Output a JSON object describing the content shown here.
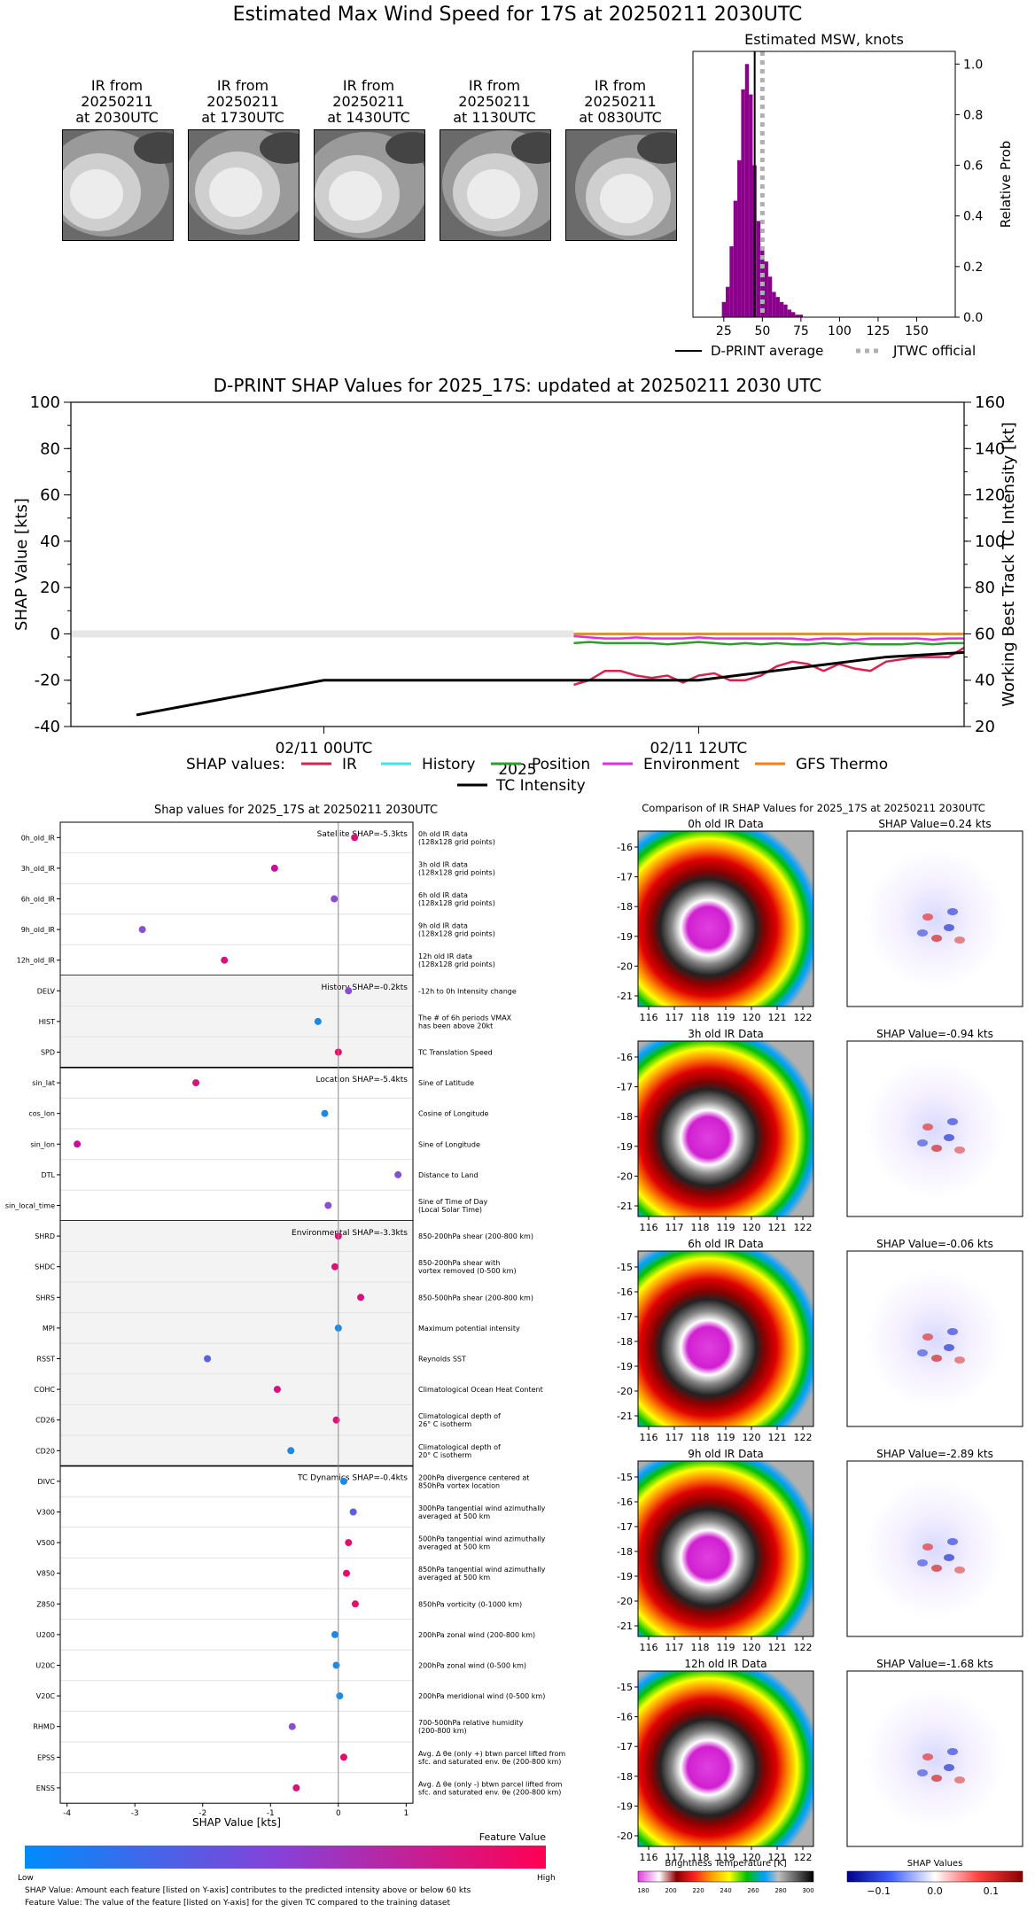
{
  "header": {
    "title": "Estimated Max Wind Speed for 17S at 20250211 2030UTC"
  },
  "thumbnails": [
    {
      "l1": "IR from",
      "l2": "20250211",
      "l3": "at 2030UTC"
    },
    {
      "l1": "IR from",
      "l2": "20250211",
      "l3": "at 1730UTC"
    },
    {
      "l1": "IR from",
      "l2": "20250211",
      "l3": "at 1430UTC"
    },
    {
      "l1": "IR from",
      "l2": "20250211",
      "l3": "at 1130UTC"
    },
    {
      "l1": "IR from",
      "l2": "20250211",
      "l3": "at 0830UTC"
    }
  ],
  "chart_data": [
    {
      "type": "bar",
      "title": "Estimated MSW, knots",
      "ylabel": "Relative Prob",
      "xlim": [
        5,
        175
      ],
      "ylim": [
        0,
        1.05
      ],
      "xticks": [
        "25",
        "50",
        "75",
        "100",
        "125",
        "150"
      ],
      "yticks": [
        "0.0",
        "0.2",
        "0.4",
        "0.6",
        "0.8",
        "1.0"
      ],
      "bins_start": 25,
      "bin_width": 2.5,
      "values": [
        0.06,
        0.12,
        0.28,
        0.46,
        0.62,
        0.9,
        1.0,
        0.88,
        0.6,
        0.38,
        0.28,
        0.22,
        0.16,
        0.1,
        0.08,
        0.06,
        0.05,
        0.03,
        0.02,
        0.01,
        0.01
      ],
      "dprint_average": 45,
      "jtwc_official": 50,
      "legend": [
        "D-PRINT average",
        "JTWC official"
      ]
    },
    {
      "type": "line",
      "title": "D-PRINT SHAP Values for 2025_17S: updated at 20250211 2030 UTC",
      "ylabel": "SHAP Value [kts]",
      "y2label": "Working Best Track TC Intensity [kt]",
      "xlabel": "2025",
      "ylim": [
        -40,
        100
      ],
      "y2lim": [
        20,
        160
      ],
      "yticks": [
        "-40",
        "-20",
        "0",
        "20",
        "40",
        "60",
        "80",
        "100"
      ],
      "y2ticks": [
        "20",
        "40",
        "60",
        "80",
        "100",
        "120",
        "140",
        "160"
      ],
      "xticks": [
        "02/11 00UTC",
        "02/11 12UTC"
      ],
      "legend_prefix": "SHAP values:",
      "legend": [
        "IR",
        "History",
        "Position",
        "Environment",
        "GFS Thermo",
        "TC Intensity"
      ],
      "shap_x_hours": [
        8,
        8.5,
        9,
        9.5,
        10,
        10.5,
        11,
        11.5,
        12,
        12.5,
        13,
        13.5,
        14,
        14.5,
        15,
        15.5,
        16,
        16.5,
        17,
        17.5,
        18,
        18.5,
        19,
        19.5,
        20,
        20.5
      ],
      "series": [
        {
          "name": "IR",
          "color": "#d6244f",
          "values": [
            -22,
            -20,
            -16,
            -16,
            -18,
            -19,
            -18,
            -21,
            -18,
            -17,
            -20,
            -20,
            -18,
            -14,
            -12,
            -13,
            -16,
            -13,
            -15,
            -16,
            -12,
            -11,
            -10,
            -10,
            -10,
            -6
          ]
        },
        {
          "name": "History",
          "color": "#3ee6e6",
          "values": [
            -0.2,
            -0.2,
            -0.2,
            -0.2,
            -0.2,
            -0.2,
            -0.2,
            -0.2,
            -0.2,
            -0.2,
            -0.2,
            -0.2,
            -0.2,
            -0.2,
            -0.2,
            -0.2,
            -0.2,
            -0.2,
            -0.2,
            -0.2,
            -0.2,
            -0.2,
            -0.2,
            -0.2,
            -0.2,
            -0.2
          ]
        },
        {
          "name": "Position",
          "color": "#2ca02c",
          "values": [
            -4,
            -3.5,
            -4,
            -4,
            -4,
            -4,
            -4.5,
            -4,
            -3.5,
            -4,
            -4.5,
            -4,
            -4.5,
            -4,
            -4.5,
            -4.5,
            -4,
            -4.5,
            -4,
            -4.5,
            -4.5,
            -4.5,
            -4,
            -4.5,
            -4,
            -4
          ]
        },
        {
          "name": "Environment",
          "color": "#e030e0",
          "values": [
            -1,
            -1.5,
            -2,
            -2,
            -1.5,
            -2,
            -2,
            -2,
            -1.5,
            -2,
            -2,
            -2,
            -2,
            -2,
            -2,
            -2.5,
            -2,
            -2,
            -2.5,
            -2,
            -2,
            -2,
            -2,
            -2.5,
            -2,
            -2
          ]
        },
        {
          "name": "GFS Thermo",
          "color": "#ff7f0e",
          "values": [
            0,
            0,
            0,
            0,
            0,
            0,
            0,
            0,
            0,
            0,
            0,
            0,
            0,
            0,
            0,
            0,
            0,
            0,
            0,
            0,
            0,
            0,
            0,
            0,
            0,
            0
          ]
        }
      ],
      "intensity": {
        "x_hours": [
          -6,
          0,
          12,
          15,
          18,
          20.5
        ],
        "values": [
          25,
          40,
          40,
          45,
          50,
          52
        ]
      }
    }
  ],
  "shap_panel": {
    "title": "Shap values for 2025_17S at 20250211 2030UTC",
    "xlabel": "SHAP Value [kts]",
    "xticks": [
      "-4",
      "-3",
      "-2",
      "-1",
      "0",
      "1"
    ],
    "xlim": [
      -4.1,
      1.1
    ],
    "groups": [
      {
        "label": "Satellite SHAP=-5.3kts",
        "shaded": false,
        "rows": [
          {
            "name": "0h_old_IR",
            "desc": "0h old IR data\n(128x128 grid points)",
            "shap": 0.24,
            "color": "#d6137a"
          },
          {
            "name": "3h_old_IR",
            "desc": "3h old IR data\n(128x128 grid points)",
            "shap": -0.94,
            "color": "#c8109a"
          },
          {
            "name": "6h_old_IR",
            "desc": "6h old IR data\n(128x128 grid points)",
            "shap": -0.06,
            "color": "#8a4fd0"
          },
          {
            "name": "9h_old_IR",
            "desc": "9h old IR data\n(128x128 grid points)",
            "shap": -2.89,
            "color": "#8a4fd0"
          },
          {
            "name": "12h_old_IR",
            "desc": "12h old IR data\n(128x128 grid points)",
            "shap": -1.68,
            "color": "#d6137a"
          }
        ]
      },
      {
        "label": "History SHAP=-0.2kts",
        "shaded": true,
        "rows": [
          {
            "name": "DELV",
            "desc": "-12h to 0h Intensity change",
            "shap": 0.15,
            "color": "#8a4fd0"
          },
          {
            "name": "HIST",
            "desc": "The # of 6h periods VMAX\nhas been above 20kt",
            "shap": -0.3,
            "color": "#1e88e5"
          },
          {
            "name": "SPD",
            "desc": "TC Translation Speed",
            "shap": 0.0,
            "color": "#e0106a"
          }
        ]
      },
      {
        "label": "Location SHAP=-5.4kts",
        "shaded": false,
        "rows": [
          {
            "name": "sin_lat",
            "desc": "Sine of Latitude",
            "shap": -2.1,
            "color": "#d6137a"
          },
          {
            "name": "cos_lon",
            "desc": "Cosine of Longitude",
            "shap": -0.2,
            "color": "#1e88e5"
          },
          {
            "name": "sin_lon",
            "desc": "Sine of Longitude",
            "shap": -3.85,
            "color": "#c8109a"
          },
          {
            "name": "DTL",
            "desc": "Distance to Land",
            "shap": 0.88,
            "color": "#7a55d6"
          },
          {
            "name": "sin_local_time",
            "desc": "Sine of Time of Day\n(Local Solar Time)",
            "shap": -0.15,
            "color": "#8a4fd0"
          }
        ]
      },
      {
        "label": "Environmental SHAP=-3.3kts",
        "shaded": true,
        "rows": [
          {
            "name": "SHRD",
            "desc": "850-200hPa shear (200-800 km)",
            "shap": 0.0,
            "color": "#d6137a"
          },
          {
            "name": "SHDC",
            "desc": "850-200hPa shear with\nvortex removed (0-500 km)",
            "shap": -0.05,
            "color": "#d6137a"
          },
          {
            "name": "SHRS",
            "desc": "850-500hPa shear (200-800 km)",
            "shap": 0.33,
            "color": "#d6137a"
          },
          {
            "name": "MPI",
            "desc": "Maximum potential intensity",
            "shap": 0.0,
            "color": "#1e88e5"
          },
          {
            "name": "RSST",
            "desc": "Reynolds SST",
            "shap": -1.93,
            "color": "#5a60e0"
          },
          {
            "name": "COHC",
            "desc": "Climatological Ocean Heat Content",
            "shap": -0.9,
            "color": "#d6137a"
          },
          {
            "name": "CD26",
            "desc": "Climatological depth of\n26° C isotherm",
            "shap": -0.03,
            "color": "#d6137a"
          },
          {
            "name": "CD20",
            "desc": "Climatological depth of\n20° C isotherm",
            "shap": -0.7,
            "color": "#1e88e5"
          }
        ]
      },
      {
        "label": "TC Dynamics SHAP=-0.4kts",
        "shaded": false,
        "rows": [
          {
            "name": "DIVC",
            "desc": "200hPa divergence centered at\n850hPa vortex location",
            "shap": 0.08,
            "color": "#1e88e5"
          },
          {
            "name": "V300",
            "desc": "300hPa tangential wind azimuthally\naveraged at 500 km",
            "shap": 0.22,
            "color": "#5a60e0"
          },
          {
            "name": "V500",
            "desc": "500hPa tangential wind azimuthally\naveraged at 500 km",
            "shap": 0.15,
            "color": "#e0106a"
          },
          {
            "name": "V850",
            "desc": "850hPa tangential wind azimuthally\naveraged at 500 km",
            "shap": 0.12,
            "color": "#e0106a"
          },
          {
            "name": "Z850",
            "desc": "850hPa vorticity (0-1000 km)",
            "shap": 0.25,
            "color": "#e0106a"
          },
          {
            "name": "U200",
            "desc": "200hPa zonal wind (200-800 km)",
            "shap": -0.05,
            "color": "#1e88e5"
          },
          {
            "name": "U20C",
            "desc": "200hPa zonal wind (0-500 km)",
            "shap": -0.03,
            "color": "#1e88e5"
          },
          {
            "name": "V20C",
            "desc": "200hPa meridional wind (0-500 km)",
            "shap": 0.02,
            "color": "#1e88e5"
          },
          {
            "name": "RHMD",
            "desc": "700-500hPa relative humidity\n(200-800 km)",
            "shap": -0.68,
            "color": "#8a4fd0"
          },
          {
            "name": "EPSS",
            "desc": "Avg. Δ θe (only +) btwn parcel lifted from\nsfc. and saturated env. θe (200-800 km)",
            "shap": 0.08,
            "color": "#e0106a"
          },
          {
            "name": "ENSS",
            "desc": "Avg. Δ θe (only -) btwn parcel lifted from\nsfc. and saturated env. θe (200-800 km)",
            "shap": -0.62,
            "color": "#d6137a"
          }
        ]
      }
    ],
    "colorbar": {
      "title": "Feature Value",
      "low": "Low",
      "high": "High"
    },
    "footnote1": "SHAP Value: Amount each feature [listed on Y-axis] contributes to the predicted intensity above or below 60 kts",
    "footnote2": "Feature Value: The value of the feature [listed on Y-axis] for the given TC compared to the training dataset"
  },
  "ir_compare": {
    "title": "Comparison of IR SHAP Values for 2025_17S at 20250211 2030UTC",
    "lon_ticks": [
      "116",
      "117",
      "118",
      "119",
      "120",
      "121",
      "122"
    ],
    "rows": [
      {
        "ir_title": "0h old IR Data",
        "shap_title": "SHAP Value=0.24 kts",
        "lat_ticks": [
          "-16",
          "-17",
          "-18",
          "-19",
          "-20",
          "-21"
        ]
      },
      {
        "ir_title": "3h old IR Data",
        "shap_title": "SHAP Value=-0.94 kts",
        "lat_ticks": [
          "-16",
          "-17",
          "-18",
          "-19",
          "-20",
          "-21"
        ]
      },
      {
        "ir_title": "6h old IR Data",
        "shap_title": "SHAP Value=-0.06 kts",
        "lat_ticks": [
          "-15",
          "-16",
          "-17",
          "-18",
          "-19",
          "-20",
          "-21"
        ]
      },
      {
        "ir_title": "9h old IR Data",
        "shap_title": "SHAP Value=-2.89 kts",
        "lat_ticks": [
          "-15",
          "-16",
          "-17",
          "-18",
          "-19",
          "-20",
          "-21"
        ]
      },
      {
        "ir_title": "12h old IR Data",
        "shap_title": "SHAP Value=-1.68 kts",
        "lat_ticks": [
          "-15",
          "-16",
          "-17",
          "-18",
          "-19",
          "-20"
        ]
      }
    ],
    "bt_colorbar": {
      "label": "Brightness Temperature [K]",
      "ticks": [
        "180",
        "200",
        "220",
        "240",
        "260",
        "280",
        "300"
      ]
    },
    "shap_colorbar": {
      "label": "SHAP Values",
      "ticks": [
        "−0.1",
        "0.0",
        "0.1"
      ]
    }
  }
}
